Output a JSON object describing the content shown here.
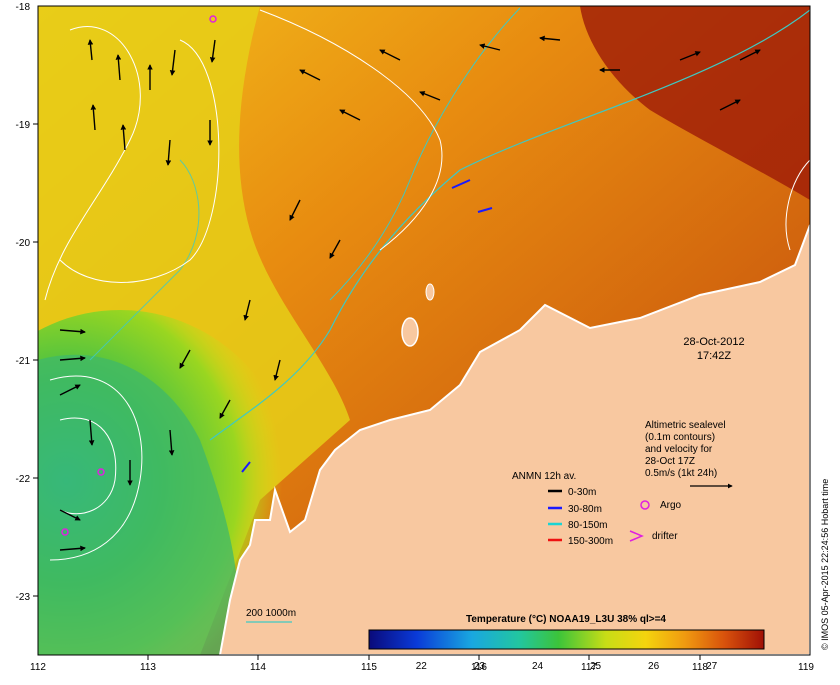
{
  "map": {
    "date_line": "28-Oct-2012",
    "time_line": "17:42Z",
    "credit": "© IMOS 05-Apr-2015 22:24:56 Hobart time",
    "x_ticks": [
      "112",
      "113",
      "114",
      "115",
      "116",
      "117",
      "118",
      "119"
    ],
    "y_ticks": [
      "-18",
      "-19",
      "-20",
      "-21",
      "-22",
      "-23"
    ]
  },
  "altimetry": {
    "lines": [
      "Altimetric sealevel",
      "(0.1m contours)",
      "and velocity for",
      "28-Oct 17Z",
      "0.5m/s (1kt 24h)"
    ]
  },
  "markers": {
    "argo_label": "Argo",
    "drifter_label": "drifter"
  },
  "anmn": {
    "title": "ANMN 12h av.",
    "items": [
      {
        "label": "0-30m",
        "color": "#000000"
      },
      {
        "label": "30-80m",
        "color": "#1a1aff"
      },
      {
        "label": "80-150m",
        "color": "#19d4d4"
      },
      {
        "label": "150-300m",
        "color": "#ee1111"
      }
    ]
  },
  "isobath": {
    "label": "200  1000m",
    "color": "#3ec9c3"
  },
  "colorbar": {
    "title": "Temperature (°C) NOAA19_L3U 38% ql>=4",
    "range": [
      21.1,
      27.9
    ],
    "ticks": [
      "22",
      "23",
      "24",
      "25",
      "26",
      "27"
    ]
  },
  "colors": {
    "land": "#f8c8a0",
    "sst_warm": "#c84a10",
    "sst_cool": "#2fb27a"
  }
}
